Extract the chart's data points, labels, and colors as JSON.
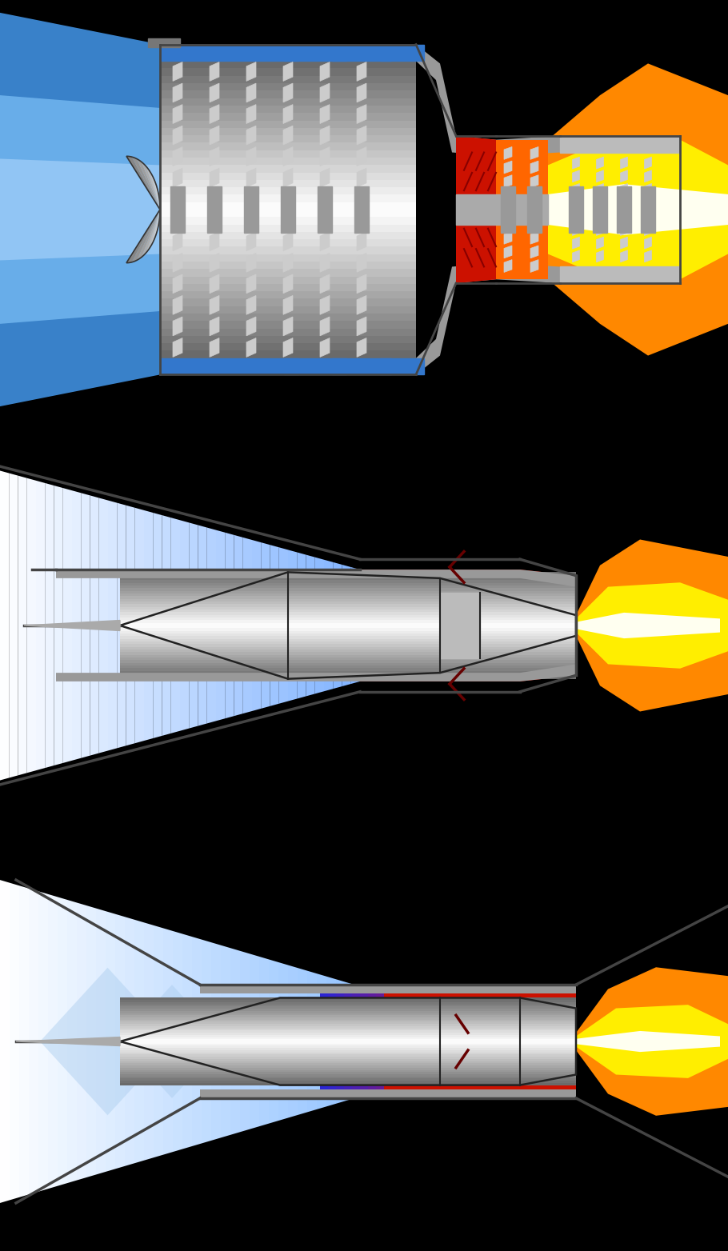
{
  "background_color": "#000000",
  "figsize": [
    9.1,
    15.64
  ],
  "dpi": 100,
  "flame_colors": {
    "white": "#FFFFFF",
    "yellow": "#FFEE00",
    "orange": "#FF8800"
  },
  "intake_blue_dark": "#3388DD",
  "intake_blue_light": "#AADDFF",
  "casing_color": "#888888",
  "metal_light": "#DDDDDD",
  "metal_mid": "#AAAAAA",
  "metal_dark": "#777777",
  "red_combustion": "#CC1100",
  "outline_color": "#222222"
}
